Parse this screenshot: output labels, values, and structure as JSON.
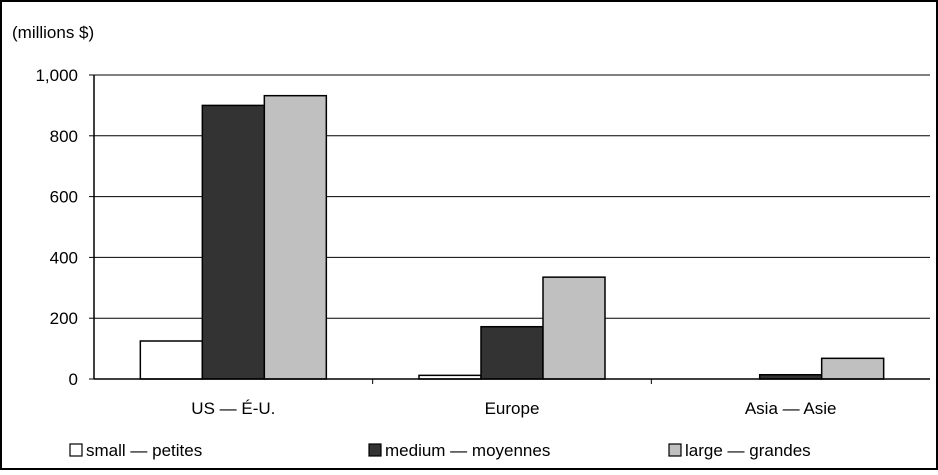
{
  "chart_data": {
    "type": "bar",
    "unit_label": "(millions $)",
    "categories": [
      "US — É-U.",
      "Europe",
      "Asia — Asie"
    ],
    "series": [
      {
        "name": "small — petites",
        "color": "#ffffff",
        "values": [
          125,
          12,
          0
        ]
      },
      {
        "name": "medium — moyennes",
        "color": "#333333",
        "values": [
          900,
          172,
          14
        ]
      },
      {
        "name": "large — grandes",
        "color": "#c0c0c0",
        "values": [
          932,
          335,
          68
        ]
      }
    ],
    "yticks": [
      0,
      200,
      400,
      600,
      800,
      1000
    ],
    "ytick_labels": [
      "0",
      "200",
      "400",
      "600",
      "800",
      "1,000"
    ],
    "ylim": [
      0,
      1000
    ],
    "grid": true,
    "legend_position": "bottom"
  }
}
